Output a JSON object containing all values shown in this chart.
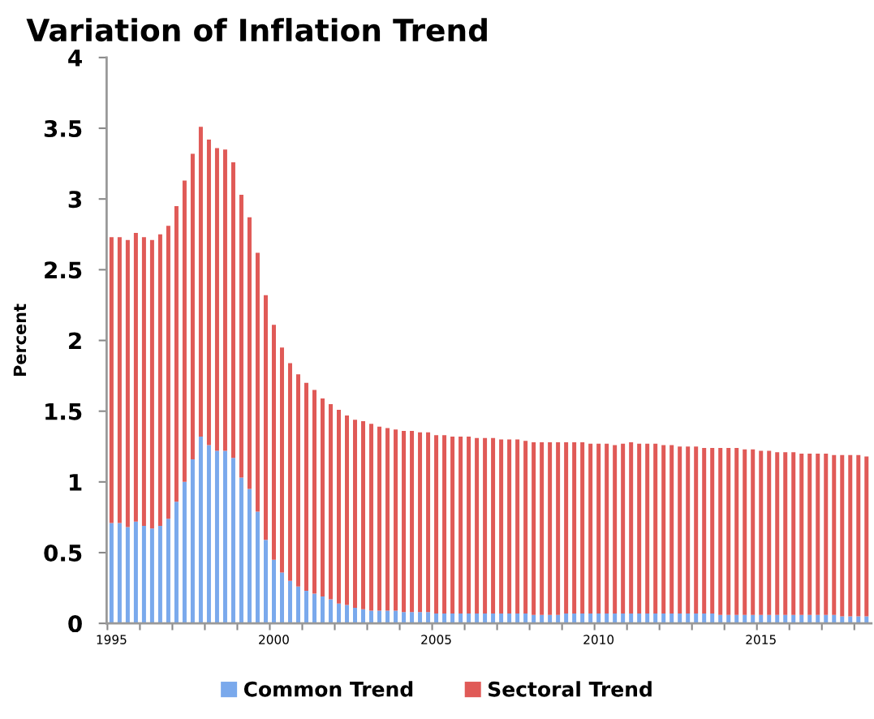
{
  "chart_data": {
    "type": "bar",
    "stacked": true,
    "title": "Variation of Inflation Trend",
    "ylabel": "Percent",
    "categories": [
      "1995",
      null,
      null,
      null,
      null,
      null,
      null,
      null,
      null,
      null,
      null,
      null,
      null,
      null,
      null,
      null,
      null,
      null,
      null,
      null,
      "2000",
      null,
      null,
      null,
      null,
      null,
      null,
      null,
      null,
      null,
      null,
      null,
      null,
      null,
      null,
      null,
      null,
      null,
      null,
      null,
      "2005",
      null,
      null,
      null,
      null,
      null,
      null,
      null,
      null,
      null,
      null,
      null,
      null,
      null,
      null,
      null,
      null,
      null,
      null,
      null,
      "2010",
      null,
      null,
      null,
      null,
      null,
      null,
      null,
      null,
      null,
      null,
      null,
      null,
      null,
      null,
      null,
      null,
      null,
      null,
      null,
      "2015",
      null,
      null,
      null,
      null,
      null,
      null,
      null,
      null,
      null,
      null,
      null,
      null,
      null
    ],
    "series": [
      {
        "name": "Common Trend",
        "color": "#7aa9ec",
        "values": [
          0.71,
          0.71,
          0.68,
          0.72,
          0.69,
          0.67,
          0.69,
          0.74,
          0.86,
          1.0,
          1.16,
          1.32,
          1.26,
          1.22,
          1.22,
          1.17,
          1.03,
          0.95,
          0.79,
          0.59,
          0.45,
          0.36,
          0.3,
          0.26,
          0.23,
          0.21,
          0.19,
          0.17,
          0.14,
          0.13,
          0.11,
          0.1,
          0.09,
          0.09,
          0.09,
          0.09,
          0.08,
          0.08,
          0.08,
          0.08,
          0.07,
          0.07,
          0.07,
          0.07,
          0.07,
          0.07,
          0.07,
          0.07,
          0.07,
          0.07,
          0.07,
          0.07,
          0.06,
          0.06,
          0.06,
          0.06,
          0.07,
          0.07,
          0.07,
          0.07,
          0.07,
          0.07,
          0.07,
          0.07,
          0.07,
          0.07,
          0.07,
          0.07,
          0.07,
          0.07,
          0.07,
          0.07,
          0.07,
          0.07,
          0.07,
          0.06,
          0.06,
          0.06,
          0.06,
          0.06,
          0.06,
          0.06,
          0.06,
          0.06,
          0.06,
          0.06,
          0.06,
          0.06,
          0.06,
          0.06,
          0.05,
          0.05,
          0.05,
          0.05
        ]
      },
      {
        "name": "Sectoral Trend",
        "color": "#e05a57",
        "values": [
          2.02,
          2.02,
          2.03,
          2.04,
          2.04,
          2.04,
          2.06,
          2.07,
          2.09,
          2.13,
          2.16,
          2.19,
          2.16,
          2.14,
          2.13,
          2.09,
          2.0,
          1.92,
          1.83,
          1.73,
          1.66,
          1.59,
          1.54,
          1.5,
          1.47,
          1.44,
          1.4,
          1.38,
          1.37,
          1.34,
          1.33,
          1.33,
          1.32,
          1.3,
          1.29,
          1.28,
          1.28,
          1.28,
          1.27,
          1.27,
          1.26,
          1.26,
          1.25,
          1.25,
          1.25,
          1.24,
          1.24,
          1.24,
          1.23,
          1.23,
          1.23,
          1.22,
          1.22,
          1.22,
          1.22,
          1.22,
          1.21,
          1.21,
          1.21,
          1.2,
          1.2,
          1.2,
          1.19,
          1.2,
          1.21,
          1.2,
          1.2,
          1.2,
          1.19,
          1.19,
          1.18,
          1.18,
          1.18,
          1.17,
          1.17,
          1.18,
          1.18,
          1.18,
          1.17,
          1.17,
          1.16,
          1.16,
          1.15,
          1.15,
          1.15,
          1.14,
          1.14,
          1.14,
          1.14,
          1.13,
          1.14,
          1.14,
          1.14,
          1.13
        ]
      }
    ],
    "ylim": [
      0,
      4
    ],
    "yticks": [
      0,
      0.5,
      1,
      1.5,
      2,
      2.5,
      3,
      3.5,
      4
    ],
    "grid": false,
    "legend": "bottom"
  }
}
